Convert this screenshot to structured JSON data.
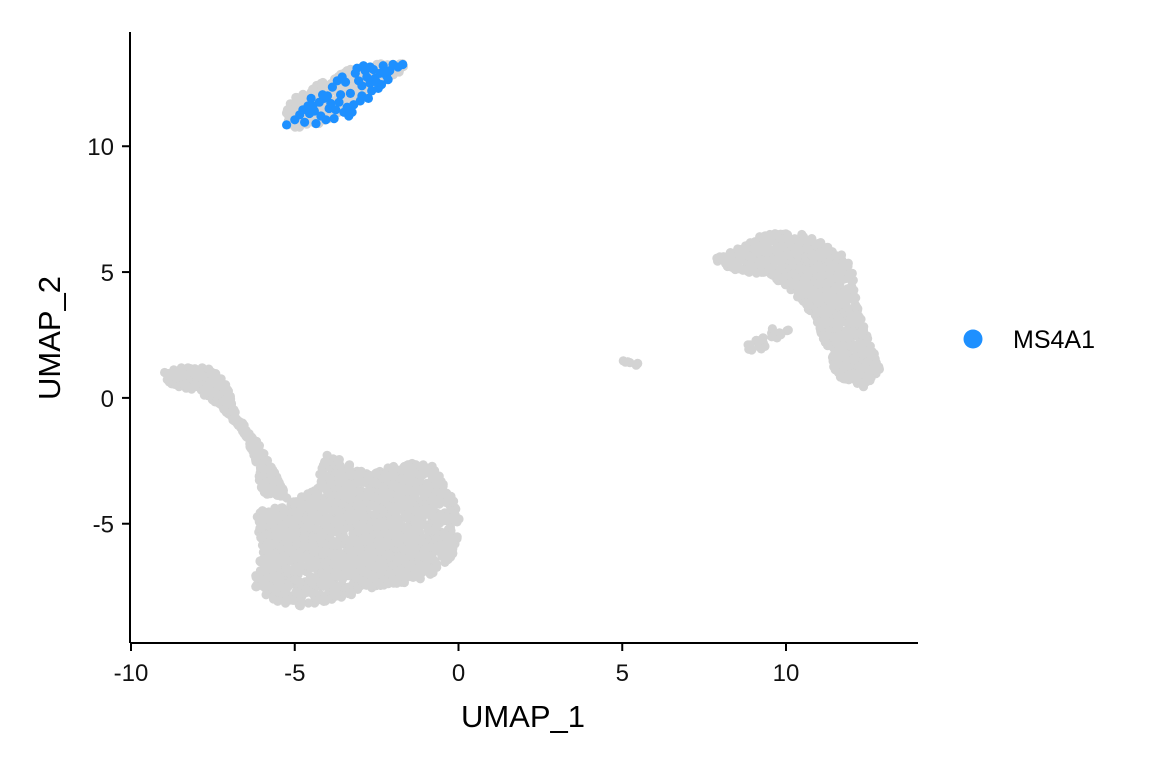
{
  "chart_data": {
    "type": "scatter",
    "xlabel": "UMAP_1",
    "ylabel": "UMAP_2",
    "xlim": [
      -10,
      14
    ],
    "ylim": [
      -9.7,
      14.5
    ],
    "x_ticks": [
      -10,
      -5,
      0,
      5,
      10
    ],
    "x_tick_labels": [
      "-10",
      "-5",
      "0",
      "5",
      "10"
    ],
    "y_ticks": [
      -5,
      0,
      5,
      10
    ],
    "y_tick_labels": [
      "-5",
      "0",
      "5",
      "10"
    ],
    "grid": false,
    "legend": {
      "position": "right",
      "entries": [
        {
          "label": "MS4A1",
          "color": "#1e90ff"
        }
      ]
    },
    "background_color": "#d3d3d3",
    "highlight_color": "#1e90ff",
    "clusters": [
      {
        "description": "upper-left cluster",
        "polygon": [
          [
            -5.2,
            10.7
          ],
          [
            -5.3,
            11.2
          ],
          [
            -5.1,
            11.9
          ],
          [
            -4.5,
            12.3
          ],
          [
            -3.5,
            13.0
          ],
          [
            -2.5,
            13.3
          ],
          [
            -1.6,
            13.3
          ],
          [
            -1.7,
            12.9
          ],
          [
            -2.5,
            12.4
          ],
          [
            -3.0,
            11.8
          ],
          [
            -3.8,
            11.2
          ],
          [
            -4.4,
            10.8
          ]
        ],
        "count": 380
      },
      {
        "description": "left arm",
        "polygon": [
          [
            -9.0,
            1.0
          ],
          [
            -8.8,
            0.5
          ],
          [
            -8.0,
            0.3
          ],
          [
            -7.2,
            -0.4
          ],
          [
            -6.5,
            -1.5
          ],
          [
            -6.2,
            -2.5
          ],
          [
            -6.0,
            -3.8
          ],
          [
            -5.2,
            -4.0
          ],
          [
            -5.6,
            -3.0
          ],
          [
            -6.2,
            -1.6
          ],
          [
            -6.8,
            -0.6
          ],
          [
            -7.1,
            0.6
          ],
          [
            -7.6,
            1.2
          ],
          [
            -8.5,
            1.2
          ]
        ],
        "count": 420
      },
      {
        "description": "bottom-left cluster",
        "polygon": [
          [
            -6.2,
            -4.5
          ],
          [
            -6.0,
            -6.2
          ],
          [
            -6.3,
            -7.5
          ],
          [
            -5.8,
            -8.0
          ],
          [
            -4.8,
            -8.3
          ],
          [
            -3.5,
            -7.9
          ],
          [
            -2.2,
            -7.5
          ],
          [
            -1.0,
            -7.2
          ],
          [
            -0.2,
            -6.3
          ],
          [
            0.1,
            -5.0
          ],
          [
            -0.2,
            -3.8
          ],
          [
            -0.8,
            -2.7
          ],
          [
            -1.6,
            -2.5
          ],
          [
            -2.8,
            -3.0
          ],
          [
            -4.0,
            -2.2
          ],
          [
            -4.4,
            -3.6
          ],
          [
            -5.3,
            -4.3
          ]
        ],
        "count": 1750
      },
      {
        "description": "small island",
        "polygon": [
          [
            5.0,
            1.5
          ],
          [
            5.4,
            1.6
          ],
          [
            5.5,
            1.3
          ],
          [
            5.1,
            1.2
          ]
        ],
        "count": 8
      },
      {
        "description": "right cluster",
        "polygon": [
          [
            7.8,
            5.5
          ],
          [
            8.5,
            6.0
          ],
          [
            9.5,
            6.6
          ],
          [
            10.5,
            6.5
          ],
          [
            11.5,
            6.0
          ],
          [
            12.0,
            5.2
          ],
          [
            12.2,
            3.5
          ],
          [
            12.5,
            2.4
          ],
          [
            12.9,
            1.2
          ],
          [
            12.4,
            0.4
          ],
          [
            11.6,
            0.8
          ],
          [
            11.2,
            2.0
          ],
          [
            10.9,
            3.2
          ],
          [
            10.2,
            4.2
          ],
          [
            9.5,
            4.9
          ],
          [
            8.5,
            5.0
          ]
        ],
        "count": 950
      },
      {
        "description": "right cluster lower tail",
        "polygon": [
          [
            8.7,
            2.0
          ],
          [
            9.7,
            2.9
          ],
          [
            10.1,
            2.7
          ],
          [
            9.1,
            1.8
          ]
        ],
        "count": 28
      }
    ],
    "highlighted_points": [
      [
        -5.25,
        10.85
      ],
      [
        -5.0,
        11.05
      ],
      [
        -4.85,
        11.25
      ],
      [
        -4.7,
        10.95
      ],
      [
        -4.6,
        11.6
      ],
      [
        -4.5,
        11.9
      ],
      [
        -4.4,
        11.4
      ],
      [
        -4.35,
        10.9
      ],
      [
        -4.2,
        11.2
      ],
      [
        -4.1,
        11.9
      ],
      [
        -4.0,
        12.0
      ],
      [
        -3.95,
        11.5
      ],
      [
        -3.8,
        11.1
      ],
      [
        -3.7,
        12.6
      ],
      [
        -3.6,
        12.05
      ],
      [
        -3.5,
        11.35
      ],
      [
        -3.45,
        12.55
      ],
      [
        -3.3,
        12.1
      ],
      [
        -3.2,
        11.65
      ],
      [
        -3.1,
        13.1
      ],
      [
        -3.05,
        12.6
      ],
      [
        -2.95,
        12.0
      ],
      [
        -2.9,
        13.2
      ],
      [
        -2.8,
        12.75
      ],
      [
        -2.75,
        11.9
      ],
      [
        -2.7,
        12.5
      ],
      [
        -2.6,
        13.05
      ],
      [
        -2.55,
        12.7
      ],
      [
        -2.45,
        12.3
      ],
      [
        -2.4,
        12.9
      ],
      [
        -2.3,
        13.2
      ],
      [
        -2.2,
        12.8
      ],
      [
        -2.1,
        13.0
      ],
      [
        -2.0,
        13.25
      ],
      [
        -1.85,
        13.15
      ],
      [
        -1.7,
        13.25
      ],
      [
        -3.9,
        11.7
      ],
      [
        -4.25,
        11.75
      ],
      [
        -3.35,
        11.2
      ],
      [
        -2.65,
        12.2
      ],
      [
        -3.55,
        12.75
      ],
      [
        -4.55,
        11.3
      ],
      [
        -3.15,
        12.9
      ],
      [
        -2.95,
        12.4
      ],
      [
        -3.75,
        11.45
      ],
      [
        -2.5,
        12.55
      ],
      [
        -4.15,
        12.05
      ],
      [
        -3.4,
        11.55
      ],
      [
        -2.85,
        13.0
      ],
      [
        -2.35,
        12.45
      ],
      [
        -4.75,
        11.45
      ],
      [
        -3.25,
        11.35
      ],
      [
        -2.15,
        12.65
      ],
      [
        -3.65,
        11.75
      ],
      [
        -2.7,
        13.15
      ],
      [
        -4.05,
        11.05
      ],
      [
        -3.0,
        11.8
      ],
      [
        -2.25,
        12.95
      ],
      [
        -3.85,
        12.35
      ],
      [
        -4.45,
        11.6
      ]
    ]
  }
}
